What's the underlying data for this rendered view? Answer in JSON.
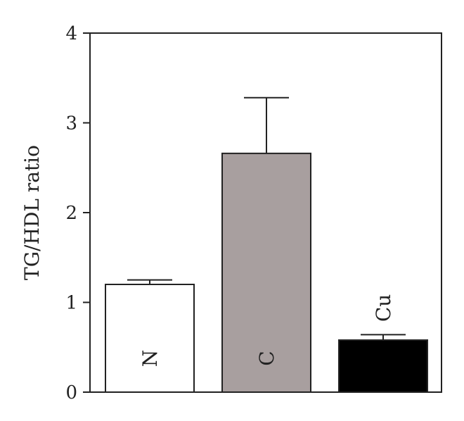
{
  "chart_data": {
    "type": "bar",
    "ylabel": "TG/HDL ratio",
    "ylim": [
      0,
      4
    ],
    "yticks": [
      0,
      1,
      2,
      3,
      4
    ],
    "categories": [
      "N",
      "C",
      "Cu"
    ],
    "values": [
      1.2,
      2.66,
      0.58
    ],
    "errors": [
      0.05,
      0.62,
      0.06
    ],
    "colors": [
      "#ffffff",
      "#a89f9f",
      "#000000"
    ],
    "label_colors": [
      "#222222",
      "#222222",
      "#222222"
    ],
    "label_placement": [
      "inside",
      "inside",
      "above"
    ],
    "grid": false,
    "legend": "none"
  }
}
